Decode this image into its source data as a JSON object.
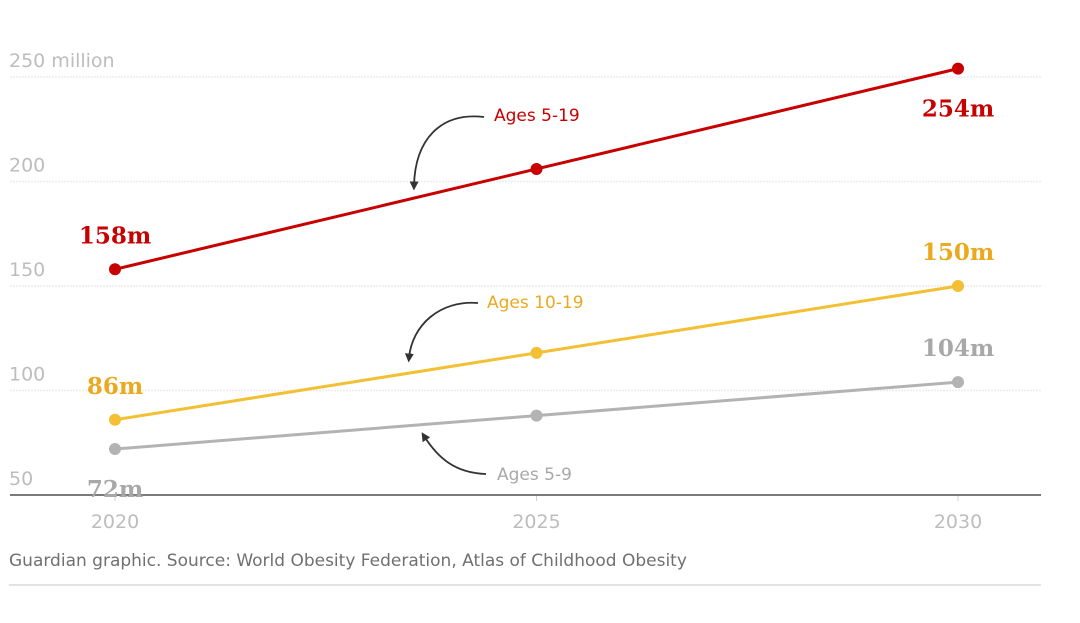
{
  "chart_data": {
    "type": "line",
    "title": "",
    "xlabel": "",
    "ylabel": "",
    "ylim": [
      50,
      250
    ],
    "y_ticks": [
      {
        "value": 250,
        "label": "250 million"
      },
      {
        "value": 200,
        "label": "200"
      },
      {
        "value": 150,
        "label": "150"
      },
      {
        "value": 100,
        "label": "100"
      },
      {
        "value": 50,
        "label": "50"
      }
    ],
    "x": [
      2020,
      2025,
      2030
    ],
    "x_tick_labels": [
      "2020",
      "2025",
      "2030"
    ],
    "grid": true,
    "series": [
      {
        "name": "Ages 5-19",
        "color": "#c70000",
        "label_color": "#c70000",
        "values": [
          158,
          206,
          254
        ],
        "data_labels": [
          {
            "index": 0,
            "text": "158m",
            "position": "above"
          },
          {
            "index": 2,
            "text": "254m",
            "position": "below"
          }
        ]
      },
      {
        "name": "Ages 10-19",
        "color": "#f3c034",
        "label_color": "#eaa91f",
        "values": [
          86,
          118,
          150
        ],
        "data_labels": [
          {
            "index": 0,
            "text": "86m",
            "position": "above"
          },
          {
            "index": 2,
            "text": "150m",
            "position": "above"
          }
        ]
      },
      {
        "name": "Ages 5-9",
        "color": "#b3b3b3",
        "label_color": "#a8a8a8",
        "values": [
          72,
          88,
          104
        ],
        "data_labels": [
          {
            "index": 0,
            "text": "72m",
            "position": "below"
          },
          {
            "index": 2,
            "text": "104m",
            "position": "above"
          }
        ]
      }
    ],
    "annotations": [
      {
        "text": "Ages 5-19",
        "series": 0
      },
      {
        "text": "Ages 10-19",
        "series": 1
      },
      {
        "text": "Ages 5-9",
        "series": 2
      }
    ]
  },
  "source": "Guardian graphic. Source: World Obesity Federation, Atlas of Childhood Obesity"
}
